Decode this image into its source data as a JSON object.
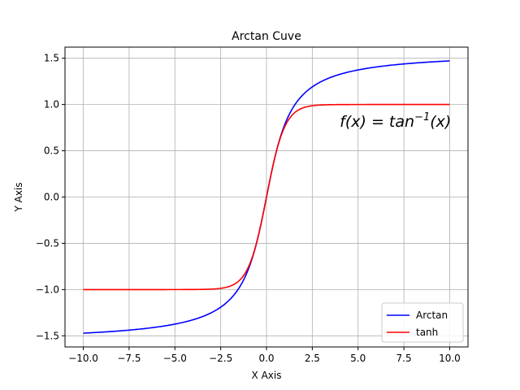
{
  "chart_data": {
    "type": "line",
    "title": "Arctan Cuve",
    "xlabel": "X Axis",
    "ylabel": "Y Axis",
    "xlim": [
      -11.0,
      11.0
    ],
    "ylim": [
      -1.62,
      1.62
    ],
    "x_ticks": [
      -10.0,
      -7.5,
      -5.0,
      -2.5,
      0.0,
      2.5,
      5.0,
      7.5,
      10.0
    ],
    "x_tick_labels": [
      "−10.0",
      "−7.5",
      "−5.0",
      "−2.5",
      "0.0",
      "2.5",
      "5.0",
      "7.5",
      "10.0"
    ],
    "y_ticks": [
      -1.5,
      -1.0,
      -0.5,
      0.0,
      0.5,
      1.0,
      1.5
    ],
    "y_tick_labels": [
      "−1.5",
      "−1.0",
      "−0.5",
      "0.0",
      "0.5",
      "1.0",
      "1.5"
    ],
    "grid": true,
    "legend_position": "bottom-right",
    "x_range": [
      -10,
      10
    ],
    "series": [
      {
        "name": "Arctan",
        "function": "arctan",
        "color": "#0000ff"
      },
      {
        "name": "tanh",
        "function": "tanh",
        "color": "#ff0000"
      }
    ],
    "annotation": {
      "base": "f(x) = tan",
      "sup": "−1",
      "tail": "(x)",
      "x": 4.0,
      "y": 0.82
    }
  }
}
